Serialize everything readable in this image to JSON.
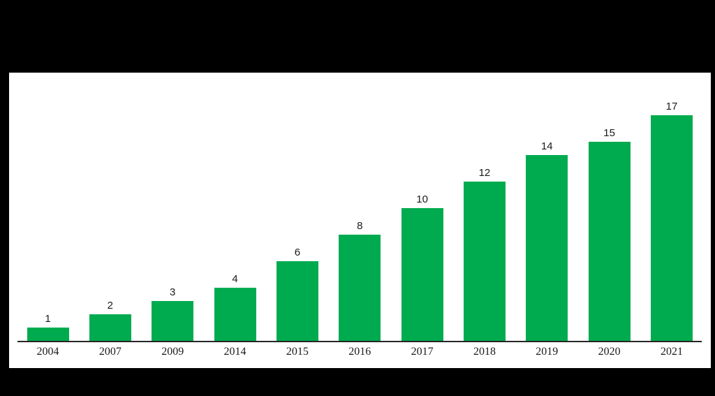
{
  "window": {
    "background_color": "#000000"
  },
  "chart": {
    "panel_background": "#ffffff",
    "bar_color": "#00ab50",
    "axis_color": "#262626",
    "label_color": "#1a1a1a"
  },
  "chart_data": {
    "type": "bar",
    "title": "",
    "xlabel": "",
    "ylabel": "",
    "categories": [
      "2004",
      "2007",
      "2009",
      "2014",
      "2015",
      "2016",
      "2017",
      "2018",
      "2019",
      "2020",
      "2021"
    ],
    "values": [
      1,
      2,
      3,
      4,
      6,
      8,
      10,
      12,
      14,
      15,
      17
    ],
    "ylim": [
      0,
      18
    ],
    "grid": false,
    "legend": false,
    "data_labels_shown": true,
    "y_axis_shown": false,
    "tick_marks_shown": false
  }
}
